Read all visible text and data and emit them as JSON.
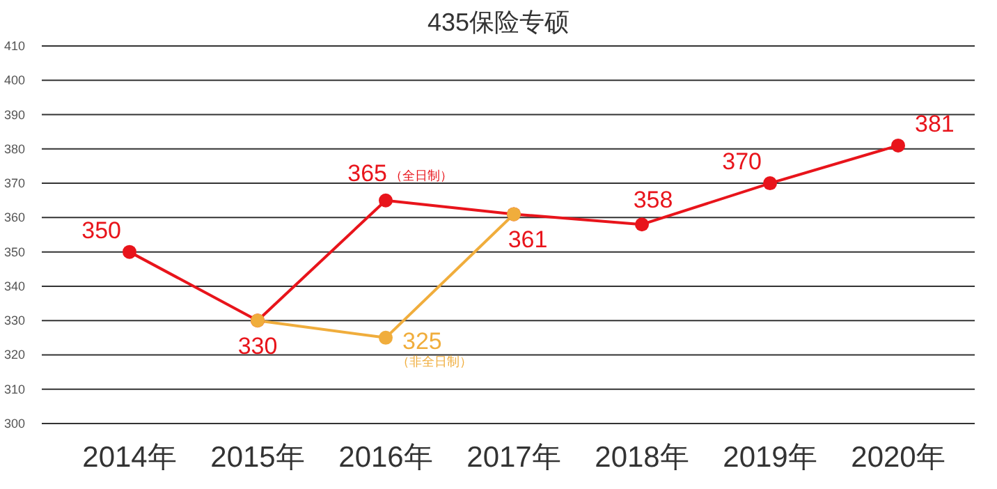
{
  "chart_data": {
    "type": "line",
    "title": "435保险专硕",
    "categories": [
      "2014年",
      "2015年",
      "2016年",
      "2017年",
      "2018年",
      "2019年",
      "2020年"
    ],
    "series": [
      {
        "color": "#e8141b",
        "values": [
          350,
          330,
          365,
          361,
          358,
          370,
          381
        ],
        "value_labels": [
          "350",
          "330",
          "365",
          "361",
          "358",
          "370",
          "381"
        ]
      },
      {
        "color": "#f0ad3c",
        "values": [
          null,
          330,
          325,
          361,
          null,
          null,
          null
        ],
        "value_labels": [
          null,
          null,
          "325",
          null,
          null,
          null,
          null
        ]
      }
    ],
    "annotations": [
      {
        "text": "（全日制）",
        "x": "2016年",
        "y": 365
      },
      {
        "text": "（非全日制）",
        "x": "2016年",
        "y": 325
      }
    ],
    "ylim": [
      300,
      410
    ],
    "yticks": [
      300,
      310,
      320,
      330,
      340,
      350,
      360,
      370,
      380,
      390,
      400,
      410
    ],
    "grid": "y",
    "marker": "circle",
    "line_style": "solid"
  }
}
